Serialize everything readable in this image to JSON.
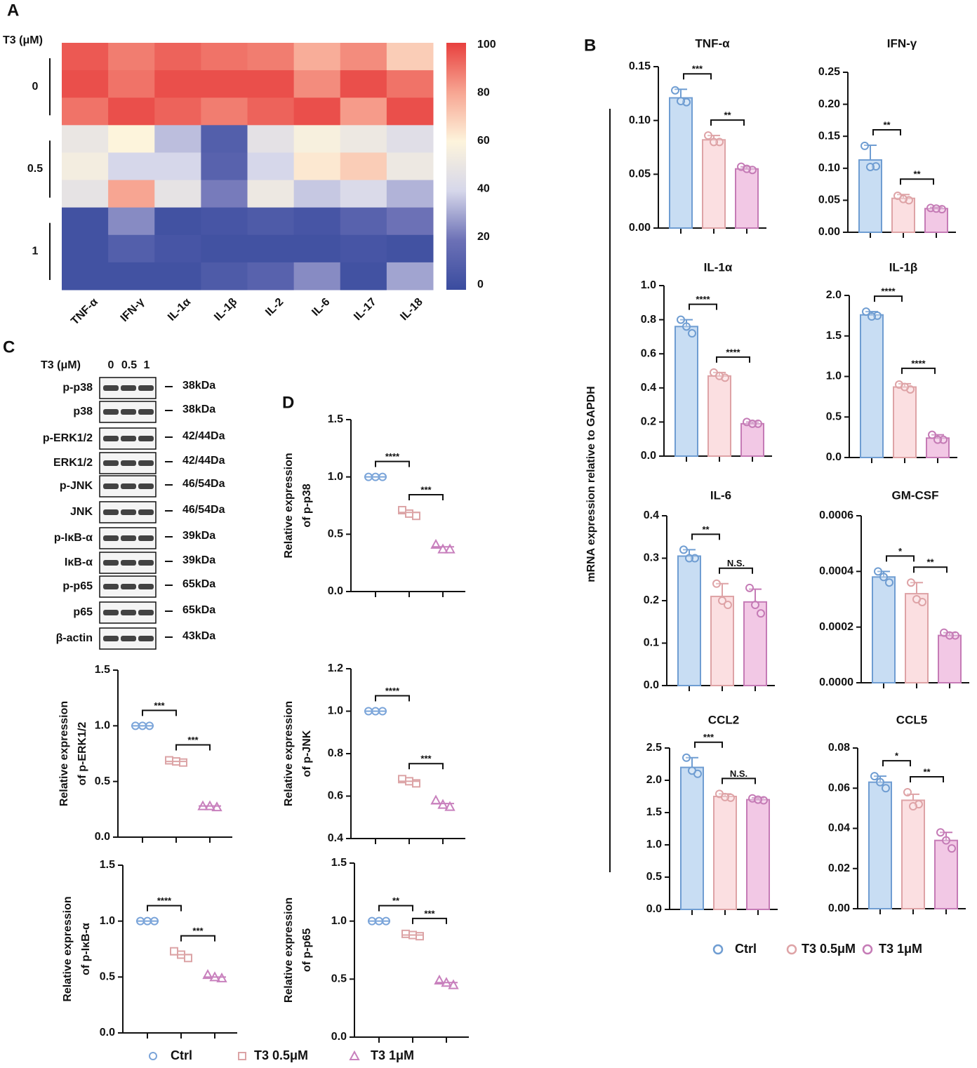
{
  "panel_labels": [
    "A",
    "B",
    "C",
    "D"
  ],
  "ylabel_b": "mRNA expression relative to GAPDH",
  "legend_b": [
    {
      "name": "Ctrl",
      "color": "#6f9dd2",
      "fill": "#c8ddf3"
    },
    {
      "name": "T3 0.5μM",
      "color": "#dea3a6",
      "fill": "#fbdfe1"
    },
    {
      "name": "T3 1μM",
      "color": "#c57bb6",
      "fill": "#f2c8e5"
    }
  ],
  "legend_cd": [
    {
      "name": "Ctrl",
      "color": "#7aa4d9",
      "marker": "circle"
    },
    {
      "name": "T3 0.5μM",
      "color": "#dca4a6",
      "marker": "square"
    },
    {
      "name": "T3 1μM",
      "color": "#c880bd",
      "marker": "triangle"
    }
  ],
  "blot": {
    "title": "T3 (μM)",
    "lanes": [
      "0",
      "0.5",
      "1"
    ],
    "rows": [
      {
        "label": "p-p38",
        "size": "38kDa"
      },
      {
        "label": "p38",
        "size": "38kDa"
      },
      {
        "label": "p-ERK1/2",
        "size": "42/44Da"
      },
      {
        "label": "ERK1/2",
        "size": "42/44Da"
      },
      {
        "label": "p-JNK",
        "size": "46/54Da"
      },
      {
        "label": "JNK",
        "size": "46/54Da"
      },
      {
        "label": "p-IκB-α",
        "size": "39kDa"
      },
      {
        "label": "IκB-α",
        "size": "39kDa"
      },
      {
        "label": "p-p65",
        "size": "65kDa"
      },
      {
        "label": "p65",
        "size": "65kDa"
      },
      {
        "label": "β-actin",
        "size": "43kDa"
      }
    ]
  },
  "chart_data": [
    {
      "type": "heatmap",
      "row_group_title": "T3 (μM)",
      "row_groups": [
        "0",
        "0.5",
        "1"
      ],
      "categories": [
        "TNF-α",
        "IFN-γ",
        "IL-1α",
        "IL-1β",
        "IL-2",
        "IL-6",
        "IL-17",
        "IL-18"
      ],
      "values": [
        [
          95,
          88,
          93,
          90,
          88,
          78,
          85,
          70
        ],
        [
          97,
          90,
          97,
          97,
          97,
          85,
          97,
          90
        ],
        [
          90,
          97,
          93,
          88,
          93,
          97,
          82,
          97
        ],
        [
          50,
          60,
          35,
          10,
          47,
          57,
          52,
          45
        ],
        [
          55,
          40,
          40,
          12,
          40,
          63,
          70,
          52
        ],
        [
          48,
          80,
          48,
          22,
          52,
          37,
          42,
          33
        ],
        [
          3,
          25,
          3,
          5,
          8,
          5,
          12,
          20
        ],
        [
          3,
          10,
          5,
          3,
          3,
          3,
          5,
          3
        ],
        [
          3,
          3,
          3,
          8,
          12,
          25,
          3,
          30
        ]
      ],
      "zlim": [
        0,
        100
      ],
      "zticks": [
        0,
        20,
        40,
        60,
        80,
        100
      ],
      "colors": [
        "#3a4c9f",
        "#6c71b6",
        "#d6d7ea",
        "#fdf4dc",
        "#f7a592",
        "#e8403e"
      ]
    },
    {
      "type": "bar",
      "title": "TNF-α",
      "values": [
        0.121,
        0.082,
        0.055
      ],
      "errors": [
        0.008,
        0.004,
        0.002
      ],
      "points": [
        [
          0.128,
          0.117,
          0.118
        ],
        [
          0.086,
          0.08,
          0.08
        ],
        [
          0.057,
          0.054,
          0.055
        ]
      ],
      "sig_labels": [
        "***",
        "**"
      ],
      "ylim": [
        0,
        0.15
      ],
      "yticks": [
        {
          "value": 0,
          "label": "0.00"
        },
        0.05,
        {
          "value": 0.1,
          "label": "0.10"
        },
        0.15
      ]
    },
    {
      "type": "bar",
      "title": "IFN-γ",
      "values": [
        0.113,
        0.053,
        0.037
      ],
      "errors": [
        0.023,
        0.006,
        0.002
      ],
      "points": [
        [
          0.135,
          0.103,
          0.102
        ],
        [
          0.057,
          0.05,
          0.052
        ],
        [
          0.038,
          0.036,
          0.037
        ]
      ],
      "sig_labels": [
        "**",
        "**"
      ],
      "ylim": [
        0,
        0.25
      ],
      "yticks": [
        {
          "value": 0,
          "label": "0.00"
        },
        0.05,
        {
          "value": 0.1,
          "label": "0.10"
        },
        0.15,
        {
          "value": 0.2,
          "label": "0.20"
        },
        0.25
      ]
    },
    {
      "type": "bar",
      "title": "IL-1α",
      "values": [
        0.76,
        0.47,
        0.19
      ],
      "errors": [
        0.04,
        0.02,
        0.01
      ],
      "points": [
        [
          0.8,
          0.72,
          0.76
        ],
        [
          0.49,
          0.46,
          0.47
        ],
        [
          0.2,
          0.19,
          0.19
        ]
      ],
      "sig_labels": [
        "****",
        "****"
      ],
      "ylim": [
        0,
        1
      ],
      "yticks": [
        {
          "value": 0,
          "label": "0.0"
        },
        0.2,
        0.4,
        0.6,
        0.8,
        {
          "value": 1,
          "label": "1.0"
        }
      ]
    },
    {
      "type": "bar",
      "title": "IL-1β",
      "values": [
        1.76,
        0.87,
        0.24
      ],
      "errors": [
        0.04,
        0.04,
        0.04
      ],
      "points": [
        [
          1.8,
          1.75,
          1.74
        ],
        [
          0.9,
          0.84,
          0.87
        ],
        [
          0.28,
          0.22,
          0.22
        ]
      ],
      "sig_labels": [
        "****",
        "****"
      ],
      "ylim": [
        0,
        2
      ],
      "yticks": [
        {
          "value": 0,
          "label": "0.0"
        },
        0.5,
        {
          "value": 1,
          "label": "1.0"
        },
        1.5,
        {
          "value": 2,
          "label": "2.0"
        }
      ]
    },
    {
      "type": "bar",
      "title": "IL-6",
      "values": [
        0.305,
        0.21,
        0.197
      ],
      "errors": [
        0.015,
        0.03,
        0.03
      ],
      "points": [
        [
          0.32,
          0.3,
          0.3
        ],
        [
          0.24,
          0.19,
          0.2
        ],
        [
          0.23,
          0.17,
          0.19
        ]
      ],
      "sig_labels": [
        "**",
        "N.S."
      ],
      "ylim": [
        0,
        0.4
      ],
      "yticks": [
        {
          "value": 0,
          "label": "0.0"
        },
        0.1,
        0.2,
        0.3,
        0.4
      ]
    },
    {
      "type": "bar",
      "title": "GM-CSF",
      "values": [
        0.00038,
        0.00032,
        0.00017
      ],
      "errors": [
        2e-05,
        4e-05,
        1e-05
      ],
      "points": [
        [
          0.0004,
          0.00036,
          0.00038
        ],
        [
          0.00036,
          0.00029,
          0.0003
        ],
        [
          0.00018,
          0.00017,
          0.00017
        ]
      ],
      "sig_labels": [
        "*",
        "**"
      ],
      "ylim": [
        0,
        0.0006
      ],
      "yticks": [
        {
          "value": 0,
          "label": "0.0000"
        },
        0.0002,
        0.0004,
        0.0006
      ]
    },
    {
      "type": "bar",
      "title": "CCL2",
      "values": [
        2.2,
        1.75,
        1.7
      ],
      "errors": [
        0.15,
        0.04,
        0.03
      ],
      "points": [
        [
          2.35,
          2.1,
          2.15
        ],
        [
          1.79,
          1.73,
          1.74
        ],
        [
          1.72,
          1.69,
          1.7
        ]
      ],
      "sig_labels": [
        "***",
        "N.S."
      ],
      "ylim": [
        0,
        2.5
      ],
      "yticks": [
        {
          "value": 0,
          "label": "0.0"
        },
        0.5,
        {
          "value": 1,
          "label": "1.0"
        },
        1.5,
        {
          "value": 2,
          "label": "2.0"
        },
        2.5
      ]
    },
    {
      "type": "bar",
      "title": "CCL5",
      "values": [
        0.063,
        0.054,
        0.034
      ],
      "errors": [
        0.003,
        0.003,
        0.004
      ],
      "points": [
        [
          0.066,
          0.06,
          0.063
        ],
        [
          0.058,
          0.052,
          0.051
        ],
        [
          0.038,
          0.03,
          0.034
        ]
      ],
      "sig_labels": [
        "*",
        "**"
      ],
      "ylim": [
        0,
        0.08
      ],
      "yticks": [
        {
          "value": 0,
          "label": "0.00"
        },
        0.02,
        0.04,
        0.06,
        0.08
      ]
    },
    {
      "type": "scatter",
      "ylabel": [
        "Relative expression",
        "of p-p38"
      ],
      "values": [
        1,
        0.69,
        0.39
      ],
      "points": [
        [
          1,
          1,
          1
        ],
        [
          0.71,
          0.68,
          0.66
        ],
        [
          0.41,
          0.37,
          0.37
        ]
      ],
      "sig_labels": [
        "****",
        "***"
      ],
      "ylim": [
        0,
        1.5
      ],
      "yticks": [
        {
          "value": 0,
          "label": "0.0"
        },
        0.5,
        {
          "value": 1,
          "label": "1.0"
        },
        1.5
      ]
    },
    {
      "type": "scatter",
      "ylabel": [
        "Relative expression",
        "of p-ERK1/2"
      ],
      "values": [
        1,
        0.68,
        0.28
      ],
      "points": [
        [
          1,
          1,
          1
        ],
        [
          0.69,
          0.68,
          0.67
        ],
        [
          0.28,
          0.28,
          0.27
        ]
      ],
      "sig_labels": [
        "***",
        "***"
      ],
      "ylim": [
        0,
        1.5
      ],
      "yticks": [
        {
          "value": 0,
          "label": "0.0"
        },
        0.5,
        {
          "value": 1,
          "label": "1.0"
        },
        1.5
      ]
    },
    {
      "type": "scatter",
      "ylabel": [
        "Relative expression",
        "of p-JNK"
      ],
      "values": [
        1,
        0.67,
        0.565
      ],
      "points": [
        [
          1,
          1,
          1
        ],
        [
          0.68,
          0.67,
          0.66
        ],
        [
          0.58,
          0.56,
          0.55
        ]
      ],
      "sig_labels": [
        "****",
        "***"
      ],
      "ylim": [
        0.4,
        1.2
      ],
      "yticks": [
        0.4,
        0.6,
        0.8,
        {
          "value": 1,
          "label": "1.0"
        },
        1.2
      ]
    },
    {
      "type": "scatter",
      "ylabel": [
        "Relative expression",
        "of p-IκB-α"
      ],
      "values": [
        1,
        0.7,
        0.5
      ],
      "points": [
        [
          1,
          1,
          1
        ],
        [
          0.73,
          0.7,
          0.67
        ],
        [
          0.52,
          0.5,
          0.49
        ]
      ],
      "sig_labels": [
        "****",
        "***"
      ],
      "ylim": [
        0,
        1.5
      ],
      "yticks": [
        {
          "value": 0,
          "label": "0.0"
        },
        0.5,
        {
          "value": 1,
          "label": "1.0"
        },
        1.5
      ]
    },
    {
      "type": "scatter",
      "ylabel": [
        "Relative expression",
        "of p-p65"
      ],
      "values": [
        1,
        0.88,
        0.47
      ],
      "points": [
        [
          1,
          1,
          1
        ],
        [
          0.89,
          0.88,
          0.87
        ],
        [
          0.49,
          0.47,
          0.45
        ]
      ],
      "sig_labels": [
        "**",
        "***"
      ],
      "ylim": [
        0,
        1.5
      ],
      "yticks": [
        {
          "value": 0,
          "label": "0.0"
        },
        0.5,
        {
          "value": 1,
          "label": "1.0"
        },
        1.5
      ]
    }
  ]
}
